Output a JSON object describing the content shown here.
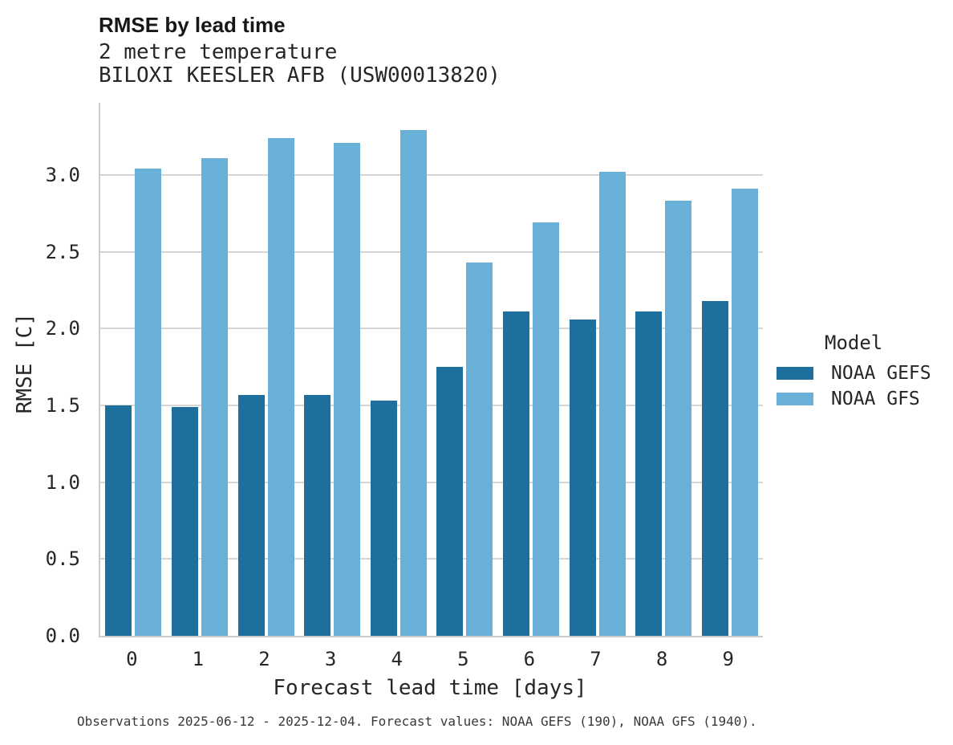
{
  "header": {
    "title": "RMSE by lead time",
    "subtitle1": "2 metre temperature",
    "subtitle2": "BILOXI KEESLER AFB (USW00013820)"
  },
  "legend": {
    "title": "Model",
    "items": [
      {
        "label": "NOAA GEFS",
        "color": "#1d6f9d"
      },
      {
        "label": "NOAA GFS",
        "color": "#69b0d8"
      }
    ]
  },
  "footer": {
    "text": "Observations 2025-06-12 - 2025-12-04. Forecast values: NOAA GEFS (190), NOAA GFS (1940)."
  },
  "chart_data": {
    "type": "bar",
    "title": "RMSE by lead time",
    "subtitle": [
      "2 metre temperature",
      "BILOXI KEESLER AFB (USW00013820)"
    ],
    "xlabel": "Forecast lead time [days]",
    "ylabel": "RMSE [C]",
    "categories": [
      "0",
      "1",
      "2",
      "3",
      "4",
      "5",
      "6",
      "7",
      "8",
      "9"
    ],
    "series": [
      {
        "name": "NOAA GEFS",
        "color": "#1d6f9d",
        "values": [
          1.5,
          1.49,
          1.57,
          1.57,
          1.53,
          1.75,
          2.11,
          2.06,
          2.11,
          2.18
        ]
      },
      {
        "name": "NOAA GFS",
        "color": "#69b0d8",
        "values": [
          3.04,
          3.11,
          3.24,
          3.21,
          3.29,
          2.43,
          2.69,
          3.02,
          2.83,
          2.91
        ]
      }
    ],
    "ylim": [
      0,
      3.47
    ],
    "yticks": [
      0.0,
      0.5,
      1.0,
      1.5,
      2.0,
      2.5,
      3.0
    ],
    "ytick_labels": [
      "0.0",
      "0.5",
      "1.0",
      "1.5",
      "2.0",
      "2.5",
      "3.0"
    ],
    "grid": "horizontal",
    "legend_title": "Model",
    "legend_position": "right",
    "annotation": "Observations 2025-06-12 - 2025-12-04. Forecast values: NOAA GEFS (190), NOAA GFS (1940)."
  },
  "colors": {
    "grid": "#d6d6d6",
    "spine": "#cccccc",
    "text": "#262626",
    "footer_text": "#3a3a3a"
  }
}
